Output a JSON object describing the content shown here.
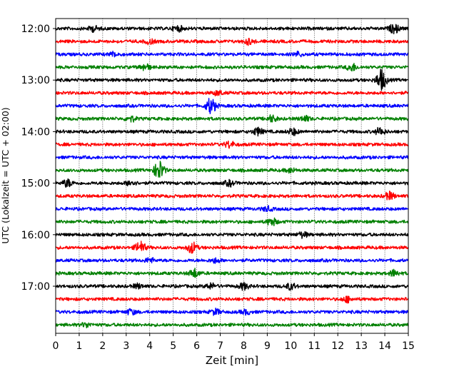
{
  "chart_data": {
    "type": "line",
    "title": "",
    "xlabel": "Zeit  [min]",
    "ylabel": "UTC (Lokalzeit = UTC + 02:00)",
    "xlim": [
      0,
      15
    ],
    "x_ticks": [
      "0",
      "1",
      "2",
      "3",
      "4",
      "5",
      "6",
      "7",
      "8",
      "9",
      "10",
      "11",
      "12",
      "13",
      "14",
      "15"
    ],
    "y_ticks": [
      "12:00",
      "13:00",
      "14:00",
      "15:00",
      "16:00",
      "17:00"
    ],
    "grid": "vertical dotted",
    "trace_interval_minutes": 15,
    "trace_colors": [
      "#000000",
      "#ff0000",
      "#0000ff",
      "#008000"
    ],
    "traces": [
      {
        "start": "12:00",
        "color": "#000000",
        "events": [
          [
            1.6,
            0.25
          ],
          [
            5.2,
            0.25
          ],
          [
            14.4,
            0.4
          ]
        ]
      },
      {
        "start": "12:15",
        "color": "#ff0000",
        "events": [
          [
            4.0,
            0.2
          ],
          [
            8.2,
            0.25
          ]
        ]
      },
      {
        "start": "12:30",
        "color": "#0000ff",
        "events": [
          [
            2.5,
            0.2
          ],
          [
            10.3,
            0.2
          ]
        ]
      },
      {
        "start": "12:45",
        "color": "#008000",
        "events": [
          [
            3.8,
            0.3
          ],
          [
            12.6,
            0.35
          ]
        ]
      },
      {
        "start": "13:00",
        "color": "#000000",
        "events": [
          [
            13.85,
            1.0
          ]
        ]
      },
      {
        "start": "13:15",
        "color": "#ff0000",
        "events": [
          [
            6.9,
            0.2
          ]
        ]
      },
      {
        "start": "13:30",
        "color": "#0000ff",
        "events": [
          [
            6.6,
            0.75
          ]
        ]
      },
      {
        "start": "13:45",
        "color": "#008000",
        "events": [
          [
            3.2,
            0.25
          ],
          [
            9.2,
            0.3
          ],
          [
            10.6,
            0.25
          ]
        ]
      },
      {
        "start": "14:00",
        "color": "#000000",
        "events": [
          [
            8.6,
            0.35
          ],
          [
            10.1,
            0.3
          ],
          [
            13.8,
            0.35
          ]
        ]
      },
      {
        "start": "14:15",
        "color": "#ff0000",
        "events": [
          [
            7.4,
            0.3
          ]
        ]
      },
      {
        "start": "14:30",
        "color": "#0000ff",
        "events": []
      },
      {
        "start": "14:45",
        "color": "#008000",
        "events": [
          [
            4.4,
            0.9
          ],
          [
            10.0,
            0.2
          ]
        ]
      },
      {
        "start": "15:00",
        "color": "#000000",
        "events": [
          [
            0.5,
            0.35
          ],
          [
            3.2,
            0.25
          ],
          [
            7.4,
            0.25
          ]
        ]
      },
      {
        "start": "15:15",
        "color": "#ff0000",
        "events": [
          [
            14.2,
            0.35
          ]
        ]
      },
      {
        "start": "15:30",
        "color": "#0000ff",
        "events": [
          [
            9.0,
            0.2
          ]
        ]
      },
      {
        "start": "15:45",
        "color": "#008000",
        "events": [
          [
            9.2,
            0.35
          ]
        ]
      },
      {
        "start": "16:00",
        "color": "#000000",
        "events": [
          [
            10.5,
            0.25
          ]
        ]
      },
      {
        "start": "16:15",
        "color": "#ff0000",
        "events": [
          [
            3.6,
            0.55
          ],
          [
            5.8,
            0.5
          ]
        ]
      },
      {
        "start": "16:30",
        "color": "#0000ff",
        "events": [
          [
            4.0,
            0.2
          ],
          [
            6.8,
            0.2
          ]
        ]
      },
      {
        "start": "16:45",
        "color": "#008000",
        "events": [
          [
            5.9,
            0.4
          ],
          [
            14.4,
            0.3
          ]
        ]
      },
      {
        "start": "17:00",
        "color": "#000000",
        "events": [
          [
            3.5,
            0.2
          ],
          [
            6.6,
            0.25
          ],
          [
            8.0,
            0.3
          ],
          [
            10.0,
            0.3
          ]
        ]
      },
      {
        "start": "17:15",
        "color": "#ff0000",
        "events": [
          [
            12.4,
            0.25
          ]
        ]
      },
      {
        "start": "17:30",
        "color": "#0000ff",
        "events": [
          [
            3.2,
            0.25
          ],
          [
            6.8,
            0.25
          ],
          [
            8.1,
            0.2
          ]
        ]
      },
      {
        "start": "17:45",
        "color": "#008000",
        "events": [
          [
            1.3,
            0.2
          ]
        ]
      }
    ]
  }
}
